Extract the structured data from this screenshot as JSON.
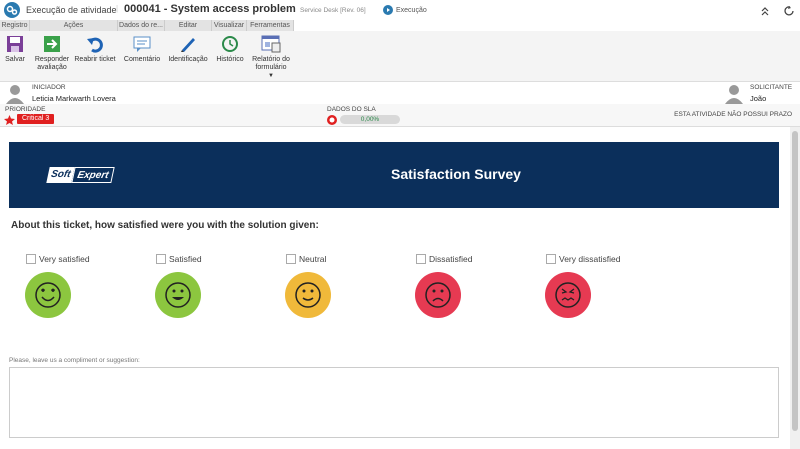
{
  "header": {
    "module": "Execução de atividade",
    "title": "000041 - System access problem",
    "process": "Service Desk [Rev. 06]",
    "status": "Execução"
  },
  "toolbar": {
    "groups": [
      "Registro",
      "Ações",
      "Dados do re...",
      "Editar",
      "Visualizar",
      "Ferramentas"
    ],
    "buttons": [
      "Salvar",
      "Responder avaliação",
      "Reabrir ticket",
      "Comentário",
      "Identificação",
      "Histórico",
      "Relatório do formulário"
    ]
  },
  "info": {
    "initiator_label": "INICIADOR",
    "initiator": "Leticia Markwarth Lovera",
    "requester_label": "SOLICITANTE",
    "requester": "João",
    "priority_label": "PRIORIDADE",
    "priority": "Critical 3",
    "sla_label": "DADOS DO SLA",
    "sla_value": "0,00%",
    "deadline": "ESTA ATIVIDADE NÃO POSSUI PRAZO"
  },
  "form": {
    "logo": [
      "Soft",
      "Expert"
    ],
    "title": "Satisfaction Survey",
    "question": "About this ticket, how satisfied were you with the solution given:",
    "options": [
      "Very satisfied",
      "Satisfied",
      "Neutral",
      "Dissatisfied",
      "Very dissatisfied"
    ],
    "suggestion_label": "Please, leave us a compliment or suggestion:"
  }
}
